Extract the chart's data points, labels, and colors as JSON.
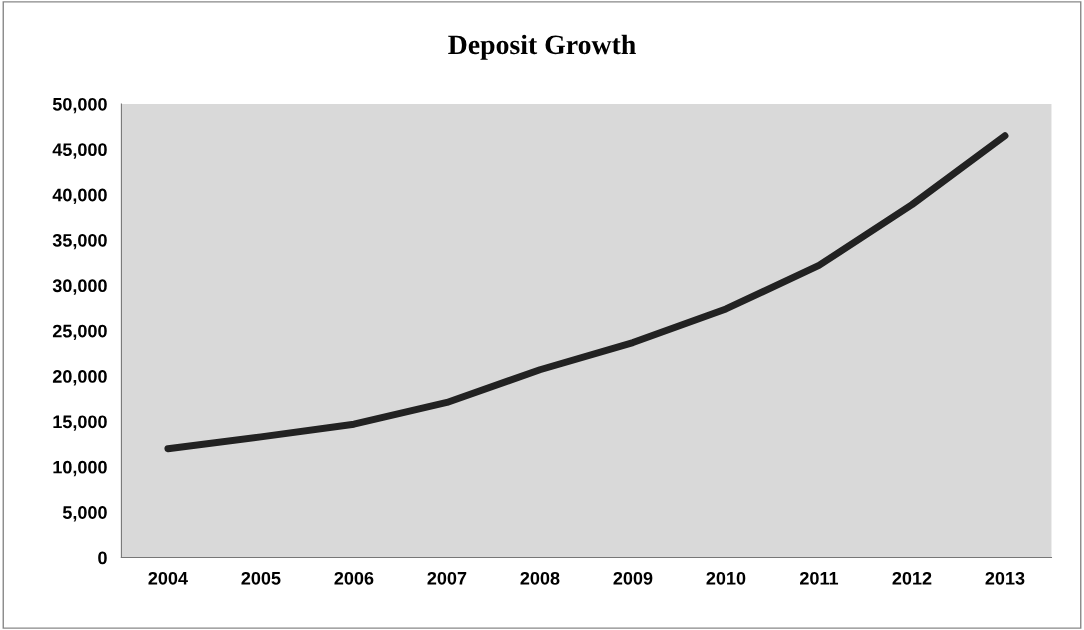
{
  "chart_data": {
    "type": "line",
    "title": "Deposit Growth",
    "categories": [
      "2004",
      "2005",
      "2006",
      "2007",
      "2008",
      "2009",
      "2010",
      "2011",
      "2012",
      "2013"
    ],
    "series": [
      {
        "color": "#222222",
        "values": [
          12000,
          13300,
          14700,
          17100,
          20700,
          23700,
          27400,
          32200,
          38900,
          46500
        ]
      }
    ],
    "ylim": [
      0,
      50000
    ],
    "yticks": [
      {
        "value": 0,
        "label": "0"
      },
      {
        "value": 5000,
        "label": "5,000"
      },
      {
        "value": 10000,
        "label": "10,000"
      },
      {
        "value": 15000,
        "label": "15,000"
      },
      {
        "value": 20000,
        "label": "20,000"
      },
      {
        "value": 25000,
        "label": "25,000"
      },
      {
        "value": 30000,
        "label": "30,000"
      },
      {
        "value": 35000,
        "label": "35,000"
      },
      {
        "value": 40000,
        "label": "40,000"
      },
      {
        "value": 45000,
        "label": "45,000"
      },
      {
        "value": 50000,
        "label": "50,000"
      }
    ],
    "grid": false,
    "legend": false,
    "marker": "none",
    "line_style": "solid"
  }
}
